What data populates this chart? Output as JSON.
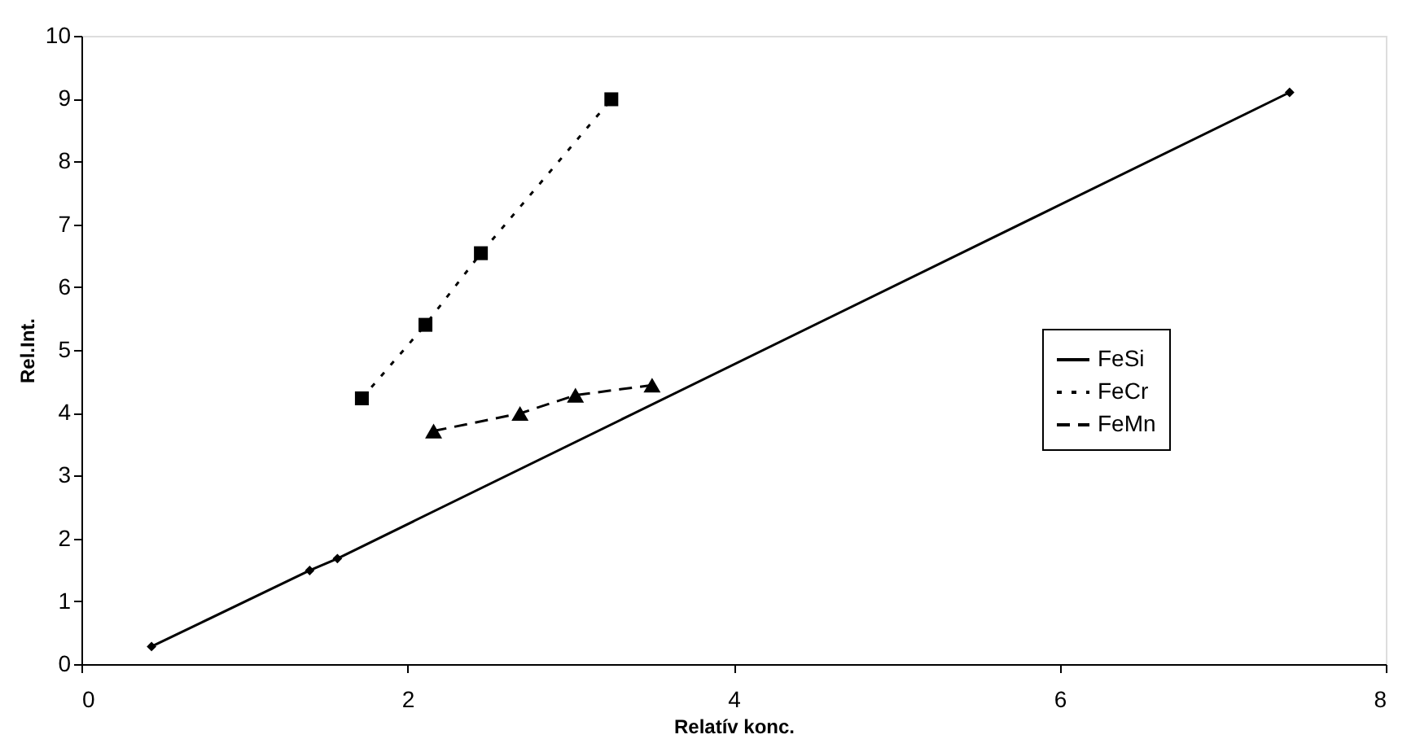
{
  "chart_data": {
    "type": "line",
    "xlabel": "Relatív konc.",
    "ylabel": "Rel.Int.",
    "xlim": [
      0,
      8
    ],
    "xticks": [
      0,
      2,
      4,
      6,
      8
    ],
    "ylim": [
      0,
      10
    ],
    "yticks": [
      0,
      1,
      2,
      3,
      4,
      5,
      6,
      7,
      8,
      9,
      10
    ],
    "grid": false,
    "legend": "right",
    "series": [
      {
        "name": "FeSi",
        "color": "#000000",
        "marker": "diamond",
        "line_style": "solid",
        "x": [
          0.43,
          1.4,
          1.57,
          7.41
        ],
        "values": [
          0.28,
          1.49,
          1.68,
          9.1
        ]
      },
      {
        "name": "FeCr",
        "color": "#000000",
        "marker": "square",
        "line_style": "dotted",
        "x": [
          1.72,
          2.11,
          2.45,
          3.25
        ],
        "values": [
          4.23,
          5.4,
          6.54,
          8.99
        ]
      },
      {
        "name": "FeMn",
        "color": "#000000",
        "marker": "triangle",
        "line_style": "dashed",
        "x": [
          2.16,
          2.69,
          3.03,
          3.5
        ],
        "values": [
          3.71,
          3.99,
          4.28,
          4.44
        ]
      }
    ]
  }
}
